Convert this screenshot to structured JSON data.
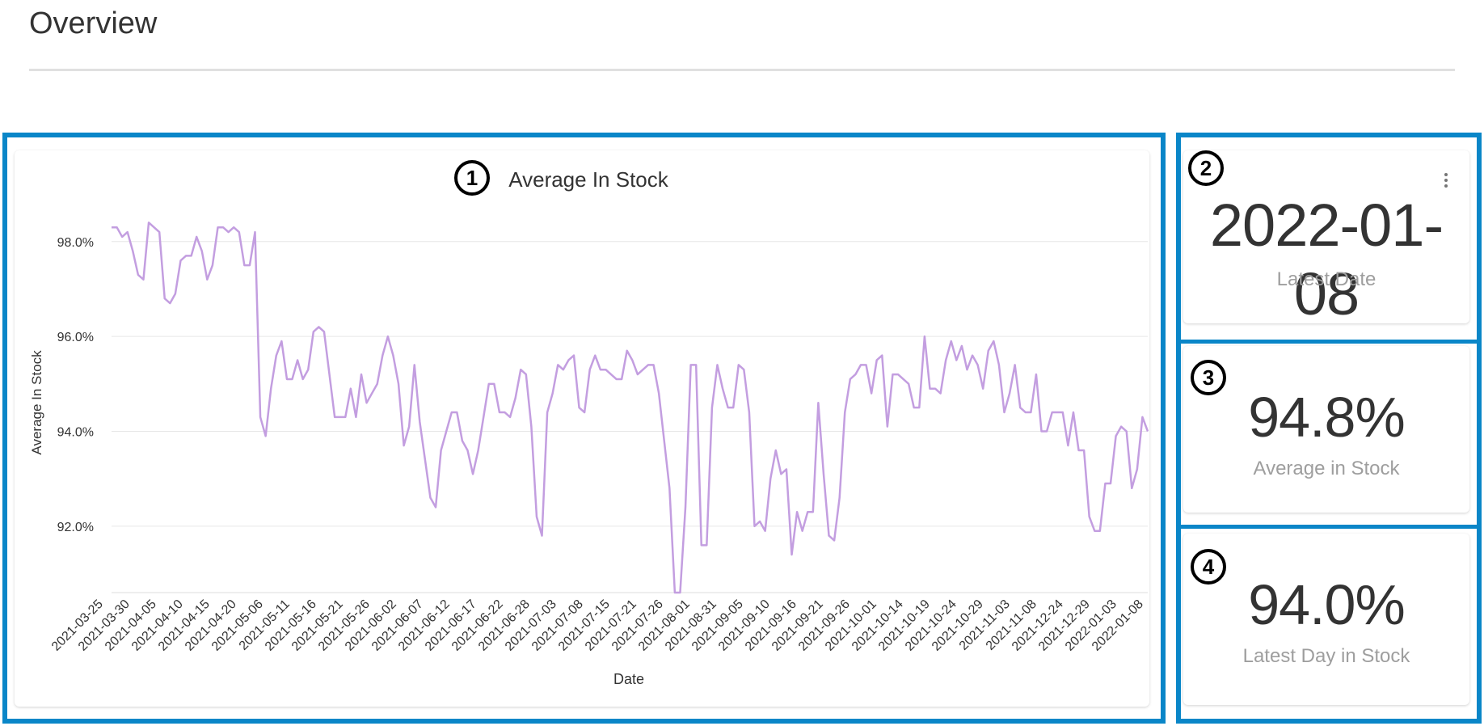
{
  "page": {
    "title": "Overview"
  },
  "markers": [
    "1",
    "2",
    "3",
    "4"
  ],
  "kpis": {
    "latest_date": {
      "value": "2022-01-08",
      "label": "Latest Date"
    },
    "average_in_stock": {
      "value": "94.8%",
      "label": "Average in Stock"
    },
    "latest_day_in_stock": {
      "value": "94.0%",
      "label": "Latest Day in Stock"
    }
  },
  "colors": {
    "line": "#c39ee0",
    "frame": "#0a86c8"
  },
  "chart_data": {
    "type": "line",
    "title": "Average In Stock",
    "xlabel": "Date",
    "ylabel": "Average In Stock",
    "ylim": [
      90.6,
      98.9
    ],
    "yticks": [
      92.0,
      94.0,
      96.0,
      98.0
    ],
    "ytick_labels": [
      "92.0%",
      "94.0%",
      "96.0%",
      "98.0%"
    ],
    "grid": true,
    "x_tick_labels": [
      "2021-03-25",
      "2021-03-30",
      "2021-04-05",
      "2021-04-10",
      "2021-04-15",
      "2021-04-20",
      "2021-05-06",
      "2021-05-11",
      "2021-05-16",
      "2021-05-21",
      "2021-05-26",
      "2021-06-02",
      "2021-06-07",
      "2021-06-12",
      "2021-06-17",
      "2021-06-22",
      "2021-06-28",
      "2021-07-03",
      "2021-07-08",
      "2021-07-15",
      "2021-07-21",
      "2021-07-26",
      "2021-08-01",
      "2021-08-31",
      "2021-09-05",
      "2021-09-10",
      "2021-09-16",
      "2021-09-21",
      "2021-09-26",
      "2021-10-01",
      "2021-10-14",
      "2021-10-19",
      "2021-10-24",
      "2021-10-29",
      "2021-11-03",
      "2021-11-08",
      "2021-12-24",
      "2021-12-29",
      "2022-01-03",
      "2022-01-08"
    ],
    "series": [
      {
        "name": "",
        "values": [
          98.3,
          98.3,
          98.1,
          98.2,
          97.8,
          97.3,
          97.2,
          98.4,
          98.3,
          98.2,
          96.8,
          96.7,
          96.9,
          97.6,
          97.7,
          97.7,
          98.1,
          97.8,
          97.2,
          97.5,
          98.3,
          98.3,
          98.2,
          98.3,
          98.2,
          97.5,
          97.5,
          98.2,
          94.3,
          93.9,
          94.9,
          95.6,
          95.9,
          95.1,
          95.1,
          95.5,
          95.1,
          95.3,
          96.1,
          96.2,
          96.1,
          95.2,
          94.3,
          94.3,
          94.3,
          94.9,
          94.3,
          95.2,
          94.6,
          94.8,
          95.0,
          95.6,
          96.0,
          95.6,
          95.0,
          93.7,
          94.1,
          95.4,
          94.2,
          93.4,
          92.6,
          92.4,
          93.6,
          94.0,
          94.4,
          94.4,
          93.8,
          93.6,
          93.1,
          93.6,
          94.3,
          95.0,
          95.0,
          94.4,
          94.4,
          94.3,
          94.7,
          95.3,
          95.2,
          94.1,
          92.2,
          91.8,
          94.4,
          94.8,
          95.4,
          95.3,
          95.5,
          95.6,
          94.5,
          94.4,
          95.3,
          95.6,
          95.3,
          95.3,
          95.2,
          95.1,
          95.1,
          95.7,
          95.5,
          95.2,
          95.3,
          95.4,
          95.4,
          94.8,
          93.8,
          92.8,
          90.6,
          90.6,
          92.4,
          95.4,
          95.4,
          91.6,
          91.6,
          94.5,
          95.4,
          94.9,
          94.5,
          94.5,
          95.4,
          95.3,
          94.4,
          92.0,
          92.1,
          91.9,
          93.0,
          93.6,
          93.1,
          93.2,
          91.4,
          92.3,
          91.9,
          92.3,
          92.3,
          94.6,
          93.1,
          91.8,
          91.7,
          92.6,
          94.4,
          95.1,
          95.2,
          95.4,
          95.4,
          94.8,
          95.5,
          95.6,
          94.1,
          95.2,
          95.2,
          95.1,
          95.0,
          94.5,
          94.5,
          96.0,
          94.9,
          94.9,
          94.8,
          95.5,
          95.9,
          95.5,
          95.8,
          95.3,
          95.6,
          95.4,
          94.9,
          95.7,
          95.9,
          95.4,
          94.4,
          94.8,
          95.4,
          94.5,
          94.4,
          94.4,
          95.2,
          94.0,
          94.0,
          94.4,
          94.4,
          94.4,
          93.7,
          94.4,
          93.6,
          93.6,
          92.2,
          91.9,
          91.9,
          92.9,
          92.9,
          93.9,
          94.1,
          94.0,
          92.8,
          93.2,
          94.3,
          94.0
        ]
      }
    ]
  }
}
